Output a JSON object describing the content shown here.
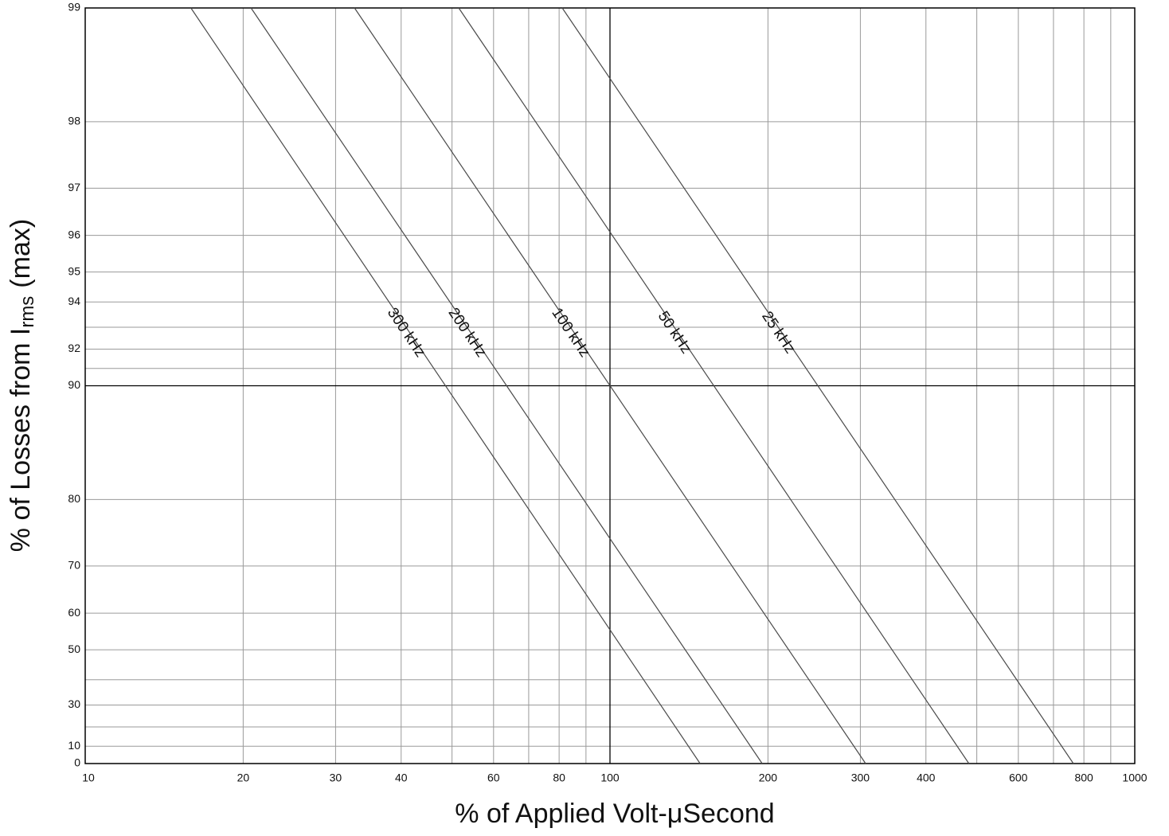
{
  "chart_data": {
    "type": "line",
    "xlabel": "% of Applied Volt-μSecond",
    "ylabel": {
      "text": "% of Losses from I",
      "sub": "rms",
      "suffix": "(max)"
    },
    "xscale": "log",
    "yscale": "log-complement",
    "xlim": [
      10,
      1000
    ],
    "ylim": [
      0,
      99
    ],
    "xticks": [
      10,
      20,
      30,
      40,
      60,
      80,
      100,
      200,
      300,
      400,
      600,
      800,
      1000
    ],
    "xgrid_minor": [
      50,
      70,
      90,
      500,
      700,
      900
    ],
    "yticks": [
      0,
      10,
      30,
      50,
      60,
      70,
      80,
      90,
      92,
      94,
      95,
      96,
      97,
      98,
      99
    ],
    "ygrid_minor": [
      20,
      40,
      91,
      93
    ],
    "x_major_line": 100,
    "y_major_line": 90,
    "grid": true,
    "grid_color": "#9a9a9a",
    "series": [
      {
        "name": "300 kHz",
        "color": "#4a4a4a",
        "x": [
          15.9,
          148.5
        ],
        "values": [
          99,
          0
        ]
      },
      {
        "name": "200 kHz",
        "color": "#4a4a4a",
        "x": [
          20.7,
          195
        ],
        "values": [
          99,
          0
        ]
      },
      {
        "name": "100 kHz",
        "color": "#4a4a4a",
        "x": [
          32.6,
          307
        ],
        "values": [
          99,
          0
        ]
      },
      {
        "name": "50 kHz",
        "color": "#4a4a4a",
        "x": [
          51.5,
          483
        ],
        "values": [
          99,
          0
        ]
      },
      {
        "name": "25 kHz",
        "color": "#4a4a4a",
        "x": [
          81.1,
          764
        ],
        "values": [
          99,
          0
        ]
      }
    ]
  }
}
